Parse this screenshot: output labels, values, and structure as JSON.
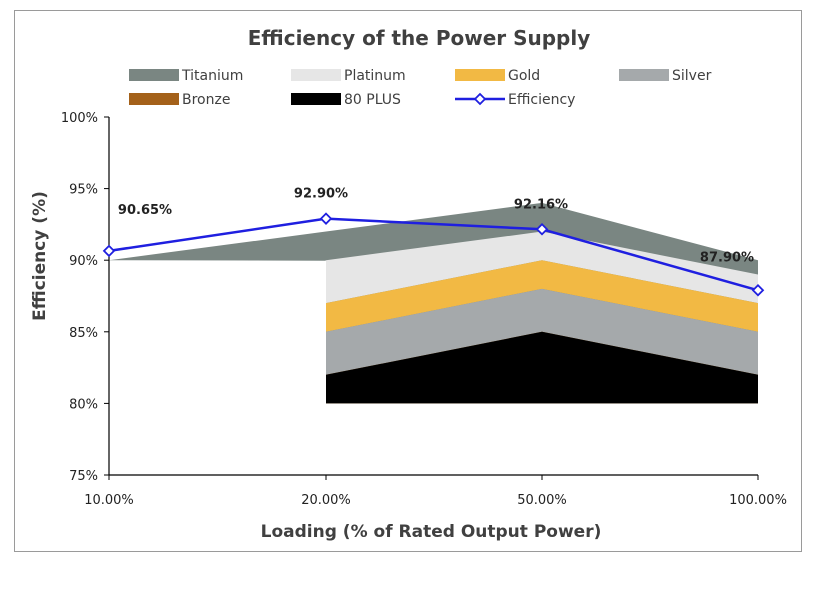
{
  "chart_data": {
    "type": "area",
    "title": "Efficiency of the Power Supply",
    "xlabel": "Loading (% of Rated Output Power)",
    "ylabel": "Efficiency (%)",
    "categories": [
      "10.00%",
      "20.00%",
      "50.00%",
      "100.00%"
    ],
    "y_ticks": [
      "75%",
      "80%",
      "85%",
      "90%",
      "95%",
      "100%"
    ],
    "ylim": [
      75,
      100
    ],
    "grid": false,
    "legend_position": "top",
    "series": [
      {
        "name": "Titanium",
        "type": "area",
        "color": "#7a8682",
        "values": [
          90,
          92,
          94,
          90
        ]
      },
      {
        "name": "Platinum",
        "type": "area",
        "color": "#e6e6e6",
        "values": [
          null,
          90,
          92,
          89
        ]
      },
      {
        "name": "Gold",
        "type": "area",
        "color": "#f2b944",
        "values": [
          null,
          87,
          90,
          87
        ]
      },
      {
        "name": "Silver",
        "type": "area",
        "color": "#a5a9ab",
        "values": [
          null,
          85,
          88,
          85
        ]
      },
      {
        "name": "Bronze",
        "type": "area",
        "color": "#a4611a",
        "values": [
          null,
          82,
          85,
          82
        ]
      },
      {
        "name": "80 PLUS",
        "type": "area",
        "color": "#000000",
        "values": [
          null,
          80,
          80,
          80
        ]
      },
      {
        "name": "Efficiency",
        "type": "line",
        "color": "#1f1fe0",
        "values": [
          90.65,
          92.9,
          92.16,
          87.9
        ]
      }
    ],
    "data_labels": [
      "90.65%",
      "92.90%",
      "92.16%",
      "87.90%"
    ],
    "titanium_base_at_10pct": 75,
    "bands_base": 80
  }
}
